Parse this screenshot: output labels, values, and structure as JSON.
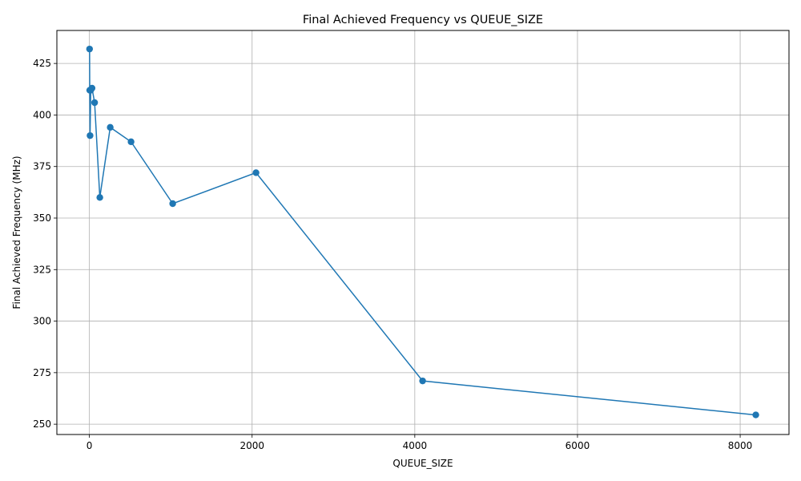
{
  "chart_data": {
    "type": "line",
    "title": "Final Achieved Frequency vs QUEUE_SIZE",
    "xlabel": "QUEUE_SIZE",
    "ylabel": "Final Achieved Frequency (MHz)",
    "xlim": [
      -400,
      8600
    ],
    "ylim": [
      245,
      441
    ],
    "xticks": [
      0,
      2000,
      4000,
      6000,
      8000
    ],
    "yticks": [
      250,
      275,
      300,
      325,
      350,
      375,
      400,
      425
    ],
    "grid": true,
    "colors": {
      "line": "#1f77b4",
      "grid": "#b0b0b0"
    },
    "series": [
      {
        "marker": "circle",
        "points": [
          {
            "x": 2,
            "y": 432
          },
          {
            "x": 4,
            "y": 412
          },
          {
            "x": 8,
            "y": 390
          },
          {
            "x": 16,
            "y": 412
          },
          {
            "x": 32,
            "y": 413
          },
          {
            "x": 64,
            "y": 406
          },
          {
            "x": 128,
            "y": 360
          },
          {
            "x": 256,
            "y": 394
          },
          {
            "x": 512,
            "y": 387
          },
          {
            "x": 1024,
            "y": 357
          },
          {
            "x": 2048,
            "y": 372
          },
          {
            "x": 4096,
            "y": 271
          },
          {
            "x": 8192,
            "y": 254.5
          }
        ]
      }
    ]
  }
}
